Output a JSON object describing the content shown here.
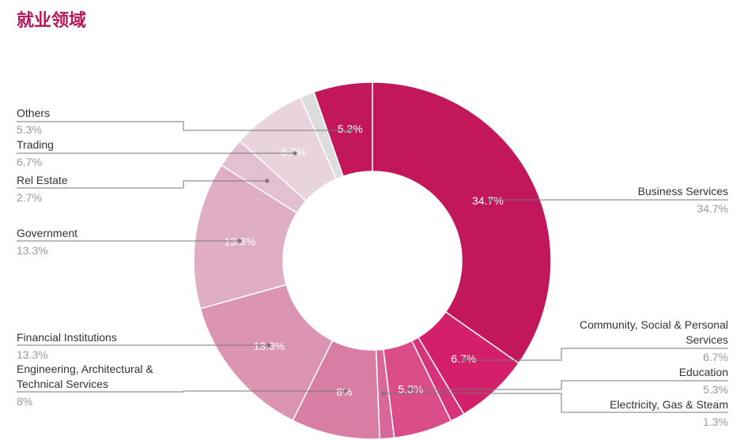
{
  "title": "就业领域",
  "chart_data": {
    "type": "pie",
    "donut": true,
    "title": "就业领域",
    "slices": [
      {
        "name": "Business Services",
        "value": 34.7,
        "label": "34.7%",
        "color": "#c2185b"
      },
      {
        "name": "Community, Social & Personal Services",
        "value": 6.7,
        "label": "6.7%",
        "color": "#d41f6b"
      },
      {
        "name": "",
        "value": 1.3,
        "label": "",
        "color": "#d6337c"
      },
      {
        "name": "Education",
        "value": 5.3,
        "label": "5.3%",
        "color": "#da4d88"
      },
      {
        "name": "Electricity, Gas & Steam",
        "value": 1.3,
        "label": "1.3%",
        "color": "#d8679c"
      },
      {
        "name": "Engineering, Architectural & Technical Services",
        "value": 8,
        "label": "8%",
        "color": "#d87da4"
      },
      {
        "name": "Financial Institutions",
        "value": 13.3,
        "label": "13.3%",
        "color": "#dc94b3"
      },
      {
        "name": "Government",
        "value": 13.3,
        "label": "13.3%",
        "color": "#dfaec5"
      },
      {
        "name": "Rel Estate",
        "value": 2.7,
        "label": "2.7%",
        "color": "#e3c0d1"
      },
      {
        "name": "Trading",
        "value": 6.7,
        "label": "6.7%",
        "color": "#e9d3dc"
      },
      {
        "name": "",
        "value": 1.3,
        "label": "",
        "color": "#dddddd"
      },
      {
        "name": "Others",
        "value": 5.3,
        "label": "5.3%",
        "color": "#c2185b"
      }
    ]
  }
}
